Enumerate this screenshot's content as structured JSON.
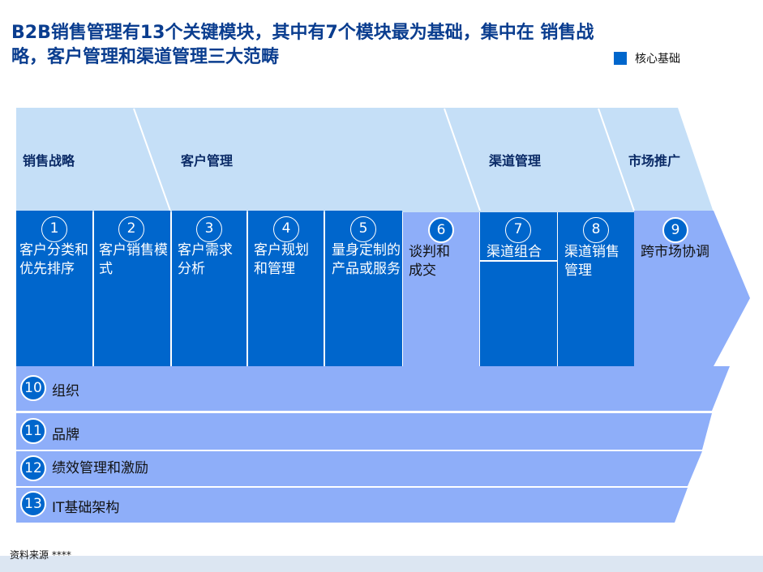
{
  "title": "B2B销售管理有13个关键模块，其中有7个模块最为基础，集中在 销售战略，客户管理和渠道管理三大范畴",
  "legend": {
    "label": "核心基础",
    "color": "#0066cc"
  },
  "categories": [
    {
      "label": "销售战略"
    },
    {
      "label": "客户管理"
    },
    {
      "label": "渠道管理"
    },
    {
      "label": "市场推广"
    }
  ],
  "modules": [
    {
      "num": "1",
      "text": "客户分类和优先排序",
      "core": true
    },
    {
      "num": "2",
      "text": "客户销售模式",
      "core": true
    },
    {
      "num": "3",
      "text": "客户需求分析",
      "core": true
    },
    {
      "num": "4",
      "text": "客户规划和管理",
      "core": true
    },
    {
      "num": "5",
      "text": "量身定制的产品或服务",
      "core": true
    },
    {
      "num": "6",
      "text": "谈判和成交",
      "core": false
    },
    {
      "num": "7",
      "text": "渠道组合",
      "core": true
    },
    {
      "num": "8",
      "text": "渠道销售管理",
      "core": true
    },
    {
      "num": "9",
      "text": "跨市场协调",
      "core": false
    }
  ],
  "bars": [
    {
      "num": "10",
      "text": "组织"
    },
    {
      "num": "11",
      "text": "品牌"
    },
    {
      "num": "12",
      "text": "绩效管理和激励"
    },
    {
      "num": "13",
      "text": "IT基础架构"
    }
  ],
  "colors": {
    "core": "#0066cc",
    "light": "#8eaef9",
    "header": "#c5dff7"
  },
  "source": "资料来源 ****"
}
